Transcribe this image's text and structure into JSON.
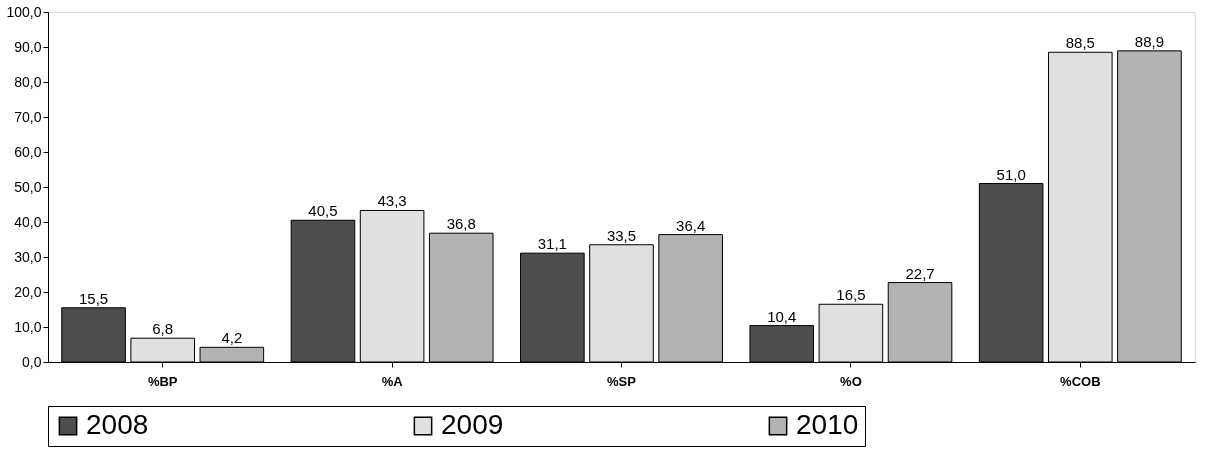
{
  "chart_data": {
    "type": "bar",
    "categories": [
      "%BP",
      "%A",
      "%SP",
      "%O",
      "%COB"
    ],
    "series": [
      {
        "name": "2008",
        "color": "#4d4d4d",
        "values": [
          15.5,
          40.5,
          31.1,
          10.4,
          51.0
        ],
        "value_labels": [
          "15,5",
          "40,5",
          "31,1",
          "10,4",
          "51,0"
        ]
      },
      {
        "name": "2009",
        "color": "#e0e0e0",
        "values": [
          6.8,
          43.3,
          33.5,
          16.5,
          88.5
        ],
        "value_labels": [
          "6,8",
          "43,3",
          "33,5",
          "16,5",
          "88,5"
        ]
      },
      {
        "name": "2010",
        "color": "#b3b3b3",
        "values": [
          4.2,
          36.8,
          36.4,
          22.7,
          88.9
        ],
        "value_labels": [
          "4,2",
          "36,8",
          "36,4",
          "22,7",
          "88,9"
        ]
      }
    ],
    "ylim": [
      0,
      100
    ],
    "yticks": [
      {
        "value": 0,
        "label": "0,0"
      },
      {
        "value": 10,
        "label": "10,0"
      },
      {
        "value": 20,
        "label": "20,0"
      },
      {
        "value": 30,
        "label": "30,0"
      },
      {
        "value": 40,
        "label": "40,0"
      },
      {
        "value": 50,
        "label": "50,0"
      },
      {
        "value": 60,
        "label": "60,0"
      },
      {
        "value": 70,
        "label": "70,0"
      },
      {
        "value": 80,
        "label": "80,0"
      },
      {
        "value": 90,
        "label": "90,0"
      },
      {
        "value": 100,
        "label": "100,0"
      }
    ],
    "grid": false,
    "legend": "bottom"
  }
}
